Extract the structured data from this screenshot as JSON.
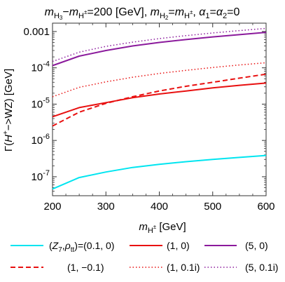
{
  "chart_data": {
    "type": "line",
    "title": "m_{H3}−m_{H±}=200 [GeV], m_{H2}=m_{H±}, α₁=α₂=0",
    "xlabel": "m_{H±} [GeV]",
    "ylabel": "Γ(H⁺−>WZ) [GeV]",
    "x_scale": "linear",
    "y_scale": "log",
    "xlim": [
      200,
      600
    ],
    "ylim": [
      3e-08,
      0.0017
    ],
    "xticks": [
      200,
      300,
      400,
      500,
      600
    ],
    "xtick_labels": [
      "200",
      "300",
      "400",
      "500",
      "600"
    ],
    "yticks": [
      1e-07,
      1e-06,
      1e-05,
      0.0001,
      0.001
    ],
    "grid": false,
    "legend_placement": "bottom",
    "legend_header": "(Z₇,ρtt)=",
    "series": [
      {
        "name": "(0.1, 0)",
        "color": "#00e5f0",
        "dash": "solid",
        "x": [
          200,
          250,
          300,
          350,
          400,
          450,
          500,
          550,
          600
        ],
        "y": [
          4.6e-08,
          9.5e-08,
          1.35e-07,
          1.8e-07,
          2.2e-07,
          2.6e-07,
          3e-07,
          3.4e-07,
          3.85e-07
        ]
      },
      {
        "name": "(1, 0)",
        "color": "#e81010",
        "dash": "solid",
        "x": [
          200,
          250,
          300,
          350,
          400,
          450,
          500,
          550,
          600
        ],
        "y": [
          4.5e-06,
          8e-06,
          1.1e-05,
          1.5e-05,
          1.9e-05,
          2.3e-05,
          2.8e-05,
          3.3e-05,
          3.8e-05
        ]
      },
      {
        "name": "(5, 0)",
        "color": "#8b1a9c",
        "dash": "solid",
        "x": [
          200,
          250,
          300,
          350,
          400,
          450,
          500,
          550,
          600
        ],
        "y": [
          0.000115,
          0.00021,
          0.0003,
          0.0004,
          0.0005,
          0.0006,
          0.00071,
          0.00082,
          0.00095
        ]
      },
      {
        "name": "(1, −0.1)",
        "color": "#e81010",
        "dash": "dashed",
        "x": [
          200,
          250,
          300,
          350,
          400,
          450,
          500,
          550,
          600
        ],
        "y": [
          2.5e-06,
          6e-06,
          1.05e-05,
          1.6e-05,
          2.3e-05,
          3.1e-05,
          4e-05,
          5.2e-05,
          6.7e-05
        ]
      },
      {
        "name": "(1, 0.1i)",
        "color": "#e81010",
        "dash": "dotted",
        "x": [
          200,
          250,
          300,
          350,
          400,
          450,
          500,
          550,
          600
        ],
        "y": [
          1.6e-05,
          2.9e-05,
          4.1e-05,
          5.5e-05,
          7e-05,
          8.5e-05,
          0.000102,
          0.00012,
          0.000138
        ]
      },
      {
        "name": "(5, 0.1i)",
        "color": "#8b1a9c",
        "dash": "dotted",
        "x": [
          200,
          250,
          300,
          350,
          400,
          450,
          500,
          550,
          600
        ],
        "y": [
          0.00015,
          0.00027,
          0.00039,
          0.00051,
          0.00064,
          0.00077,
          0.00091,
          0.00106,
          0.00122
        ]
      }
    ]
  }
}
